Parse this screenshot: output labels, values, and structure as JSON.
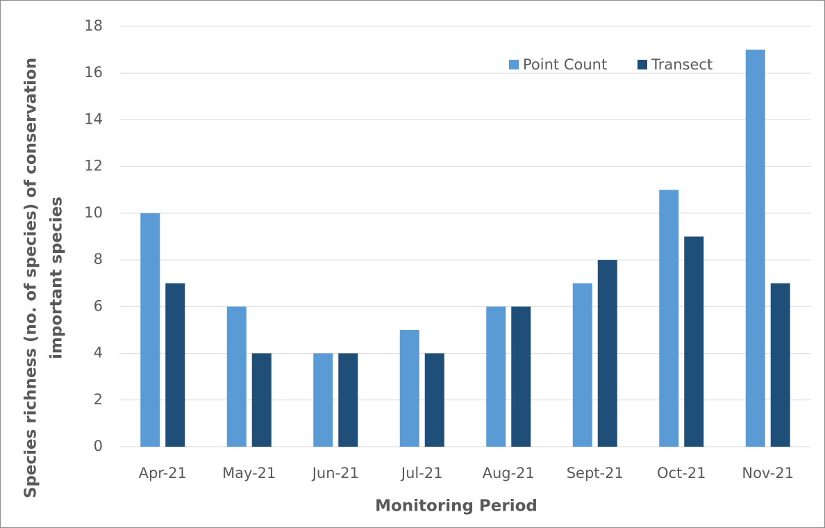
{
  "chart_data": {
    "type": "bar",
    "categories": [
      "Apr-21",
      "May-21",
      "Jun-21",
      "Jul-21",
      "Aug-21",
      "Sept-21",
      "Oct-21",
      "Nov-21"
    ],
    "series": [
      {
        "name": "Point Count",
        "color": "#5b9bd5",
        "values": [
          10,
          6,
          4,
          5,
          6,
          7,
          11,
          17
        ]
      },
      {
        "name": "Transect",
        "color": "#1f4e79",
        "values": [
          7,
          4,
          4,
          4,
          6,
          8,
          9,
          7
        ]
      }
    ],
    "xlabel": "Monitoring Period",
    "ylabel": [
      "Species richness (no. of species) of conservation",
      "important species"
    ],
    "ylim": [
      0,
      18
    ],
    "yticks": [
      0,
      2,
      4,
      6,
      8,
      10,
      12,
      14,
      16,
      18
    ],
    "grid": true,
    "legend": "top-right"
  }
}
